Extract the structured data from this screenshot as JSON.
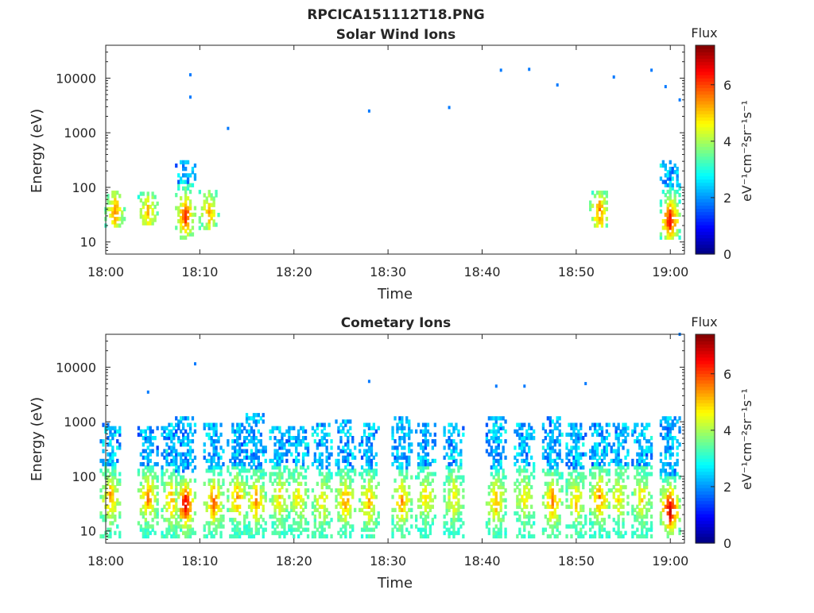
{
  "figure_title": "RPCICA151112T18.PNG",
  "chart_data": [
    {
      "type": "heatmap",
      "title": "Solar Wind Ions",
      "xlabel": "Time",
      "ylabel": "Energy (eV)",
      "yscale": "log",
      "xlim": [
        "18:00",
        "19:01:30"
      ],
      "ylim": [
        6,
        40000
      ],
      "xticks": [
        "18:00",
        "18:10",
        "18:20",
        "18:30",
        "18:40",
        "18:50",
        "19:00"
      ],
      "yticks": [
        10,
        100,
        1000,
        10000
      ],
      "ytick_labels": [
        "10",
        "100",
        "1000",
        "10000"
      ],
      "colorbar": {
        "title": "Flux",
        "label": "eV⁻¹cm⁻²sr⁻¹s⁻¹",
        "range": [
          0,
          7.4
        ],
        "ticks": [
          0,
          2,
          4,
          6
        ],
        "tick_labels": [
          "0",
          "2",
          "4",
          "6"
        ],
        "colormap": "jet"
      },
      "bursts": [
        {
          "t": "18:01:00",
          "e_lo": 20,
          "e_hi": 90,
          "peak_e": 35,
          "peak_v": 5.6,
          "bg_v": 3.0
        },
        {
          "t": "18:04:30",
          "e_lo": 22,
          "e_hi": 80,
          "peak_e": 35,
          "peak_v": 5.2,
          "bg_v": 3.0
        },
        {
          "t": "18:08:30",
          "e_lo": 12,
          "e_hi": 300,
          "peak_e": 30,
          "peak_v": 6.3,
          "bg_v": 3.0
        },
        {
          "t": "18:11:00",
          "e_lo": 18,
          "e_hi": 90,
          "peak_e": 35,
          "peak_v": 5.2,
          "bg_v": 3.0
        },
        {
          "t": "18:52:30",
          "e_lo": 20,
          "e_hi": 90,
          "peak_e": 35,
          "peak_v": 5.6,
          "bg_v": 3.0
        },
        {
          "t": "19:00:00",
          "e_lo": 12,
          "e_hi": 300,
          "peak_e": 25,
          "peak_v": 6.6,
          "bg_v": 3.0
        }
      ],
      "scatter_points": [
        {
          "t": "18:09:00",
          "e": 11500,
          "v": 1.8
        },
        {
          "t": "18:09:00",
          "e": 4500,
          "v": 1.8
        },
        {
          "t": "18:13:00",
          "e": 1200,
          "v": 1.8
        },
        {
          "t": "18:28:00",
          "e": 2500,
          "v": 1.8
        },
        {
          "t": "18:36:30",
          "e": 2900,
          "v": 1.8
        },
        {
          "t": "18:42:00",
          "e": 14000,
          "v": 1.8
        },
        {
          "t": "18:45:00",
          "e": 14500,
          "v": 1.8
        },
        {
          "t": "18:48:00",
          "e": 7500,
          "v": 1.8
        },
        {
          "t": "18:54:00",
          "e": 10500,
          "v": 1.8
        },
        {
          "t": "18:58:00",
          "e": 14000,
          "v": 1.8
        },
        {
          "t": "18:59:30",
          "e": 7000,
          "v": 1.8
        },
        {
          "t": "19:01:00",
          "e": 4000,
          "v": 1.8
        }
      ]
    },
    {
      "type": "heatmap",
      "title": "Cometary Ions",
      "xlabel": "Time",
      "ylabel": "Energy (eV)",
      "yscale": "log",
      "xlim": [
        "18:00",
        "19:01:30"
      ],
      "ylim": [
        6,
        40000
      ],
      "xticks": [
        "18:00",
        "18:10",
        "18:20",
        "18:30",
        "18:40",
        "18:50",
        "19:00"
      ],
      "yticks": [
        10,
        100,
        1000,
        10000
      ],
      "ytick_labels": [
        "10",
        "100",
        "1000",
        "10000"
      ],
      "colorbar": {
        "title": "Flux",
        "label": "eV⁻¹cm⁻²sr⁻¹s⁻¹",
        "range": [
          0,
          7.4
        ],
        "ticks": [
          0,
          2,
          4,
          6
        ],
        "tick_labels": [
          "0",
          "2",
          "4",
          "6"
        ],
        "colormap": "jet"
      },
      "bursts": [
        {
          "t": "18:00:30",
          "e_lo": 8,
          "e_hi": 900,
          "peak_e": 40,
          "peak_v": 5.4,
          "bg_v": 3.2
        },
        {
          "t": "18:04:30",
          "e_lo": 8,
          "e_hi": 800,
          "peak_e": 40,
          "peak_v": 5.6,
          "bg_v": 3.2
        },
        {
          "t": "18:07:00",
          "e_lo": 8,
          "e_hi": 1000,
          "peak_e": 35,
          "peak_v": 5.2,
          "bg_v": 3.2
        },
        {
          "t": "18:08:30",
          "e_lo": 8,
          "e_hi": 1200,
          "peak_e": 30,
          "peak_v": 6.8,
          "bg_v": 3.2
        },
        {
          "t": "18:11:30",
          "e_lo": 8,
          "e_hi": 1000,
          "peak_e": 35,
          "peak_v": 5.8,
          "bg_v": 3.2
        },
        {
          "t": "18:14:00",
          "e_lo": 8,
          "e_hi": 900,
          "peak_e": 40,
          "peak_v": 5.4,
          "bg_v": 3.2
        },
        {
          "t": "18:16:00",
          "e_lo": 8,
          "e_hi": 1400,
          "peak_e": 35,
          "peak_v": 5.4,
          "bg_v": 3.2
        },
        {
          "t": "18:18:30",
          "e_lo": 8,
          "e_hi": 800,
          "peak_e": 40,
          "peak_v": 4.8,
          "bg_v": 3.2
        },
        {
          "t": "18:20:30",
          "e_lo": 8,
          "e_hi": 800,
          "peak_e": 40,
          "peak_v": 4.8,
          "bg_v": 3.2
        },
        {
          "t": "18:23:00",
          "e_lo": 8,
          "e_hi": 900,
          "peak_e": 35,
          "peak_v": 4.8,
          "bg_v": 3.2
        },
        {
          "t": "18:25:30",
          "e_lo": 8,
          "e_hi": 1100,
          "peak_e": 35,
          "peak_v": 5.4,
          "bg_v": 3.2
        },
        {
          "t": "18:28:00",
          "e_lo": 8,
          "e_hi": 900,
          "peak_e": 35,
          "peak_v": 5.2,
          "bg_v": 3.2
        },
        {
          "t": "18:31:30",
          "e_lo": 8,
          "e_hi": 1300,
          "peak_e": 35,
          "peak_v": 5.4,
          "bg_v": 3.2
        },
        {
          "t": "18:34:00",
          "e_lo": 8,
          "e_hi": 1000,
          "peak_e": 40,
          "peak_v": 4.8,
          "bg_v": 3.2
        },
        {
          "t": "18:37:00",
          "e_lo": 8,
          "e_hi": 900,
          "peak_e": 40,
          "peak_v": 4.8,
          "bg_v": 3.2
        },
        {
          "t": "18:41:30",
          "e_lo": 8,
          "e_hi": 1200,
          "peak_e": 35,
          "peak_v": 5.2,
          "bg_v": 3.2
        },
        {
          "t": "18:44:30",
          "e_lo": 8,
          "e_hi": 900,
          "peak_e": 40,
          "peak_v": 4.8,
          "bg_v": 3.2
        },
        {
          "t": "18:47:30",
          "e_lo": 8,
          "e_hi": 1300,
          "peak_e": 35,
          "peak_v": 5.6,
          "bg_v": 3.2
        },
        {
          "t": "18:50:00",
          "e_lo": 8,
          "e_hi": 1000,
          "peak_e": 35,
          "peak_v": 5.0,
          "bg_v": 3.2
        },
        {
          "t": "18:52:30",
          "e_lo": 8,
          "e_hi": 900,
          "peak_e": 40,
          "peak_v": 5.6,
          "bg_v": 3.2
        },
        {
          "t": "18:54:30",
          "e_lo": 8,
          "e_hi": 900,
          "peak_e": 40,
          "peak_v": 4.8,
          "bg_v": 3.2
        },
        {
          "t": "18:57:00",
          "e_lo": 8,
          "e_hi": 1000,
          "peak_e": 40,
          "peak_v": 4.8,
          "bg_v": 3.2
        },
        {
          "t": "19:00:00",
          "e_lo": 8,
          "e_hi": 1300,
          "peak_e": 25,
          "peak_v": 7.0,
          "bg_v": 3.2
        }
      ],
      "scatter_points": [
        {
          "t": "18:04:30",
          "e": 3500,
          "v": 1.8
        },
        {
          "t": "18:09:30",
          "e": 11500,
          "v": 1.8
        },
        {
          "t": "18:28:00",
          "e": 5500,
          "v": 1.8
        },
        {
          "t": "18:41:30",
          "e": 4500,
          "v": 1.8
        },
        {
          "t": "18:44:30",
          "e": 4500,
          "v": 1.8
        },
        {
          "t": "18:51:00",
          "e": 5000,
          "v": 1.8
        },
        {
          "t": "19:01:00",
          "e": 40000,
          "v": 1.8
        }
      ]
    }
  ]
}
